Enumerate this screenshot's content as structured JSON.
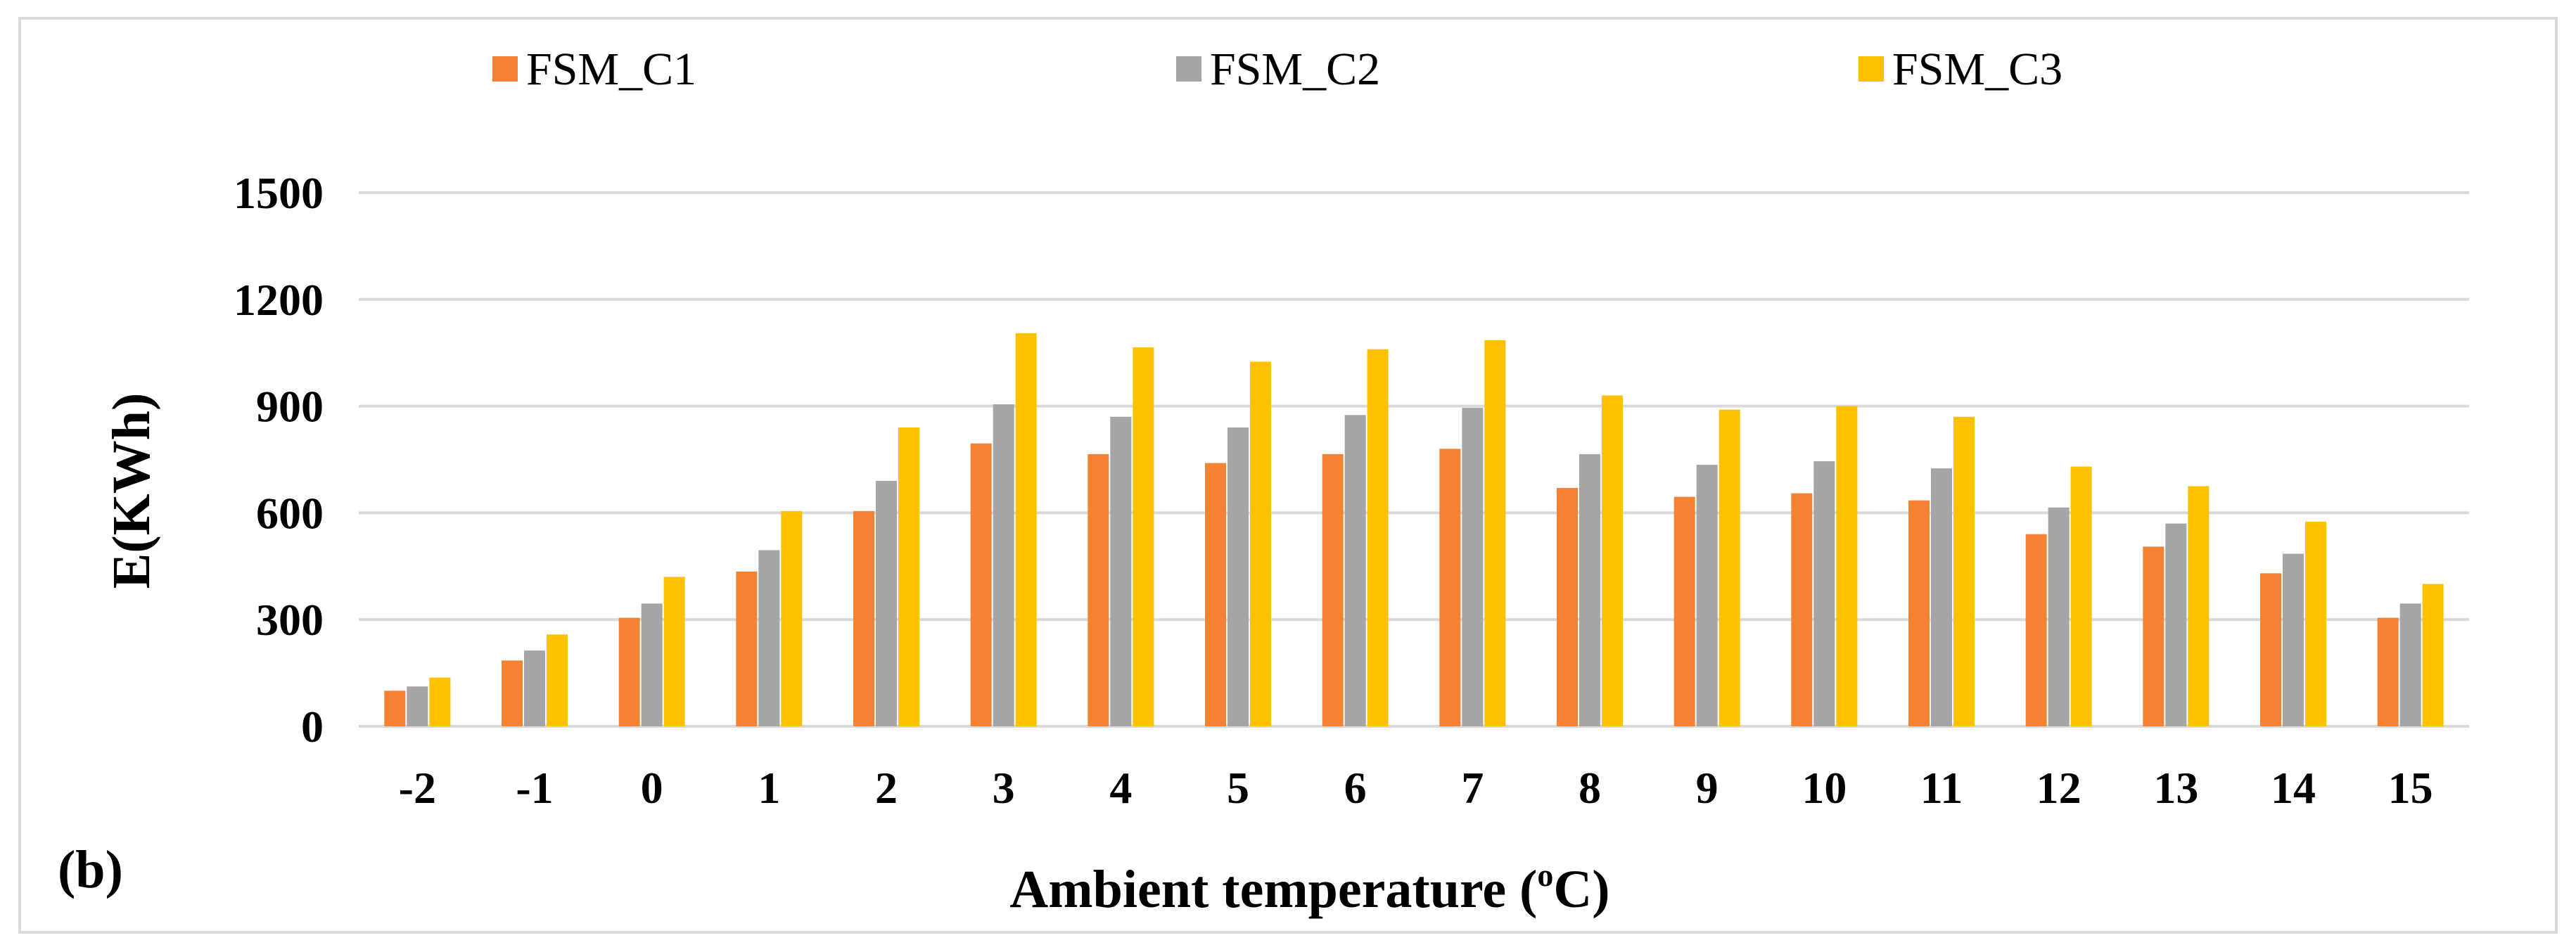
{
  "chart_data": {
    "type": "bar",
    "panel_label": "(b)",
    "xlabel": "Ambient temperature (",
    "xlabel_superscript": "o",
    "xlabel_suffix": "C)",
    "ylabel": "E(KWh)",
    "ylim": [
      0,
      1500
    ],
    "yticks": [
      "0",
      "300",
      "600",
      "900",
      "1200",
      "1500"
    ],
    "grid": true,
    "legend_position": "top",
    "categories": [
      "-2",
      "-1",
      "0",
      "1",
      "2",
      "3",
      "4",
      "5",
      "6",
      "7",
      "8",
      "9",
      "10",
      "11",
      "12",
      "13",
      "14",
      "15"
    ],
    "series": [
      {
        "name": "FSM_C1",
        "color": "#F58233",
        "values": [
          100,
          185,
          305,
          435,
          605,
          795,
          765,
          740,
          765,
          780,
          670,
          645,
          655,
          635,
          540,
          505,
          430,
          305
        ]
      },
      {
        "name": "FSM_C2",
        "color": "#A5A5A5",
        "values": [
          112,
          213,
          345,
          495,
          690,
          905,
          870,
          840,
          875,
          895,
          765,
          735,
          745,
          725,
          615,
          570,
          485,
          345
        ]
      },
      {
        "name": "FSM_C3",
        "color": "#FFC000",
        "values": [
          137,
          258,
          420,
          605,
          840,
          1105,
          1065,
          1025,
          1060,
          1085,
          930,
          890,
          900,
          870,
          730,
          675,
          575,
          400
        ]
      }
    ]
  }
}
